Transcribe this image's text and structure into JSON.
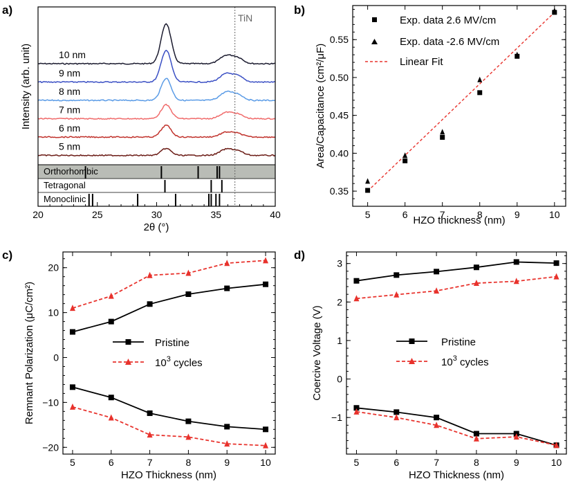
{
  "chart_data": [
    {
      "panel": "a)",
      "type": "line",
      "title": "",
      "xlabel": "2θ (°)",
      "ylabel": "Intensity (arb. unit)",
      "xlim": [
        20,
        40
      ],
      "xticks": [
        20,
        25,
        30,
        35,
        40
      ],
      "annotation": "TiN",
      "tin_position": 36.6,
      "series": [
        {
          "name": "10 nm",
          "color": "#1a1a2e",
          "baseline": 0,
          "peak1": 58,
          "peak2": 12
        },
        {
          "name": "9 nm",
          "color": "#3a4fc4",
          "baseline": 1,
          "peak1": 46,
          "peak2": 12
        },
        {
          "name": "8 nm",
          "color": "#5a9be6",
          "baseline": 2,
          "peak1": 32,
          "peak2": 12
        },
        {
          "name": "7 nm",
          "color": "#f06a6a",
          "baseline": 3,
          "peak1": 20,
          "peak2": 9
        },
        {
          "name": "6 nm",
          "color": "#c0302a",
          "baseline": 4,
          "peak1": 17,
          "peak2": 7
        },
        {
          "name": "5 nm",
          "color": "#6a1a14",
          "baseline": 5,
          "peak1": 10,
          "peak2": 9
        }
      ],
      "references": [
        {
          "name": "Orthorhombic",
          "shaded": true,
          "lines": [
            24.0,
            30.4,
            33.5,
            35.1,
            35.3
          ]
        },
        {
          "name": "Tetragonal",
          "shaded": false,
          "lines": [
            30.7,
            34.6,
            35.5
          ]
        },
        {
          "name": "Monoclinic",
          "shaded": false,
          "lines": [
            24.3,
            24.6,
            28.4,
            31.6,
            34.4,
            34.6,
            35.0,
            35.3
          ]
        }
      ]
    },
    {
      "panel": "b)",
      "type": "scatter",
      "xlabel": "HZO thickness (nm)",
      "ylabel": "Area/Capacitance (cm²/μF)",
      "xlim": [
        4.6,
        10.3
      ],
      "ylim": [
        0.33,
        0.595
      ],
      "xticks": [
        5,
        6,
        7,
        8,
        9,
        10
      ],
      "yticks": [
        0.35,
        0.4,
        0.45,
        0.5,
        0.55
      ],
      "x": [
        5,
        6,
        7,
        8,
        9,
        10
      ],
      "series": [
        {
          "name": "Exp. data 2.6 MV/cm",
          "marker": "square",
          "values": [
            0.351,
            0.39,
            0.421,
            0.48,
            0.528,
            0.586
          ]
        },
        {
          "name": "Exp. data -2.6 MV/cm",
          "marker": "triangle",
          "values": [
            0.363,
            0.397,
            0.428,
            0.497,
            0.53,
            0.588
          ]
        }
      ],
      "fit": {
        "name": "Linear Fit",
        "x": [
          5,
          10
        ],
        "y": [
          0.35,
          0.586
        ],
        "color": "#e8322c"
      }
    },
    {
      "panel": "c)",
      "type": "line",
      "xlabel": "HZO Thickness (nm)",
      "ylabel": "Remnant Polarization (μC/cm²)",
      "xlim": [
        4.75,
        10.25
      ],
      "ylim": [
        -21.5,
        23.5
      ],
      "xticks": [
        5,
        6,
        7,
        8,
        9,
        10
      ],
      "yticks": [
        -20,
        -10,
        0,
        10,
        20
      ],
      "x": [
        5,
        6,
        7,
        8,
        9,
        10
      ],
      "legend_base": "10",
      "legend_exp": "3",
      "legend_suffix": " cycles",
      "series": [
        {
          "name": "Pristine",
          "marker": "square",
          "color": "#000000",
          "pos": [
            5.7,
            8.0,
            11.9,
            14.1,
            15.4,
            16.3
          ],
          "neg": [
            -6.6,
            -8.9,
            -12.4,
            -14.2,
            -15.4,
            -16.0
          ]
        },
        {
          "name": "10³ cycles",
          "marker": "triangle",
          "color": "#e8322c",
          "pos": [
            11.0,
            13.7,
            18.3,
            18.8,
            21.0,
            21.6
          ],
          "neg": [
            -11.0,
            -13.4,
            -17.2,
            -17.7,
            -19.2,
            -19.6
          ]
        }
      ]
    },
    {
      "panel": "d)",
      "type": "line",
      "xlabel": "HZO Thickness (nm)",
      "ylabel": "Coercive Voltage (V)",
      "xlim": [
        4.75,
        10.25
      ],
      "ylim": [
        -1.95,
        3.3
      ],
      "xticks": [
        5,
        6,
        7,
        8,
        9,
        10
      ],
      "yticks": [
        -1,
        0,
        1,
        2,
        3
      ],
      "x": [
        5,
        6,
        7,
        8,
        9,
        10
      ],
      "legend_base": "10",
      "legend_exp": "3",
      "legend_suffix": " cycles",
      "series": [
        {
          "name": "Pristine",
          "marker": "square",
          "color": "#000000",
          "pos": [
            2.55,
            2.7,
            2.79,
            2.9,
            3.04,
            3.01
          ],
          "neg": [
            -0.75,
            -0.86,
            -1.0,
            -1.42,
            -1.42,
            -1.72
          ]
        },
        {
          "name": "10³ cycles",
          "marker": "triangle",
          "color": "#e8322c",
          "pos": [
            2.09,
            2.19,
            2.29,
            2.49,
            2.54,
            2.66
          ],
          "neg": [
            -0.85,
            -1.0,
            -1.2,
            -1.55,
            -1.5,
            -1.72
          ]
        }
      ]
    }
  ]
}
